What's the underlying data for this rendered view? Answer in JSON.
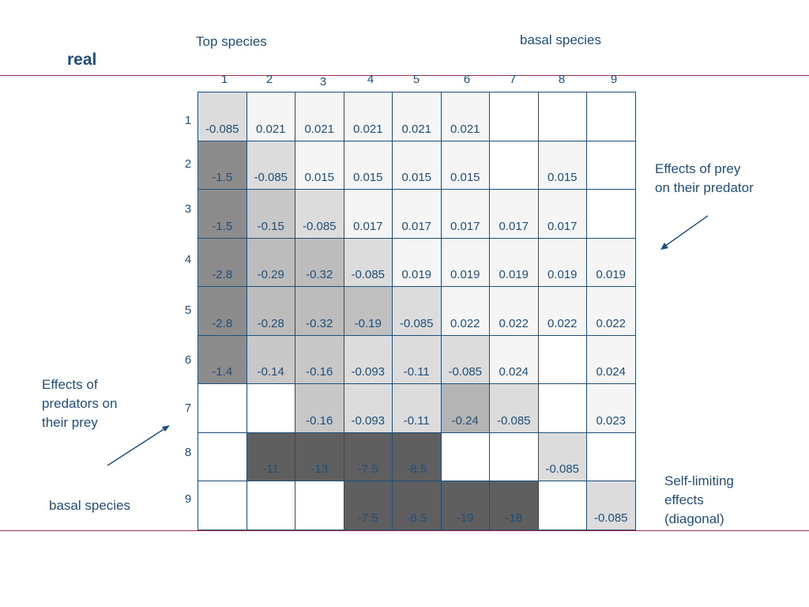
{
  "title": "real",
  "header": {
    "top_species": "Top species",
    "basal_species": "basal species"
  },
  "annotations": {
    "prey_on_predator": [
      "Effects of prey",
      "on their predator"
    ],
    "predators_on_prey": [
      "Effects of",
      "predators on",
      "their prey"
    ],
    "basal_species_left": "basal species",
    "self_limiting": [
      "Self-limiting",
      "effects",
      "(diagonal)"
    ]
  },
  "matrix": {
    "col_labels": [
      "1",
      "2",
      "3",
      "4",
      "5",
      "6",
      "7",
      "8",
      "9"
    ],
    "row_labels": [
      "1",
      "2",
      "3",
      "4",
      "5",
      "6",
      "7",
      "8",
      "9"
    ],
    "values": [
      [
        "-0.085",
        "0.021",
        "0.021",
        "0.021",
        "0.021",
        "0.021",
        "",
        "",
        ""
      ],
      [
        "-1.5",
        "-0.085",
        "0.015",
        "0.015",
        "0.015",
        "0.015",
        "",
        "0.015",
        ""
      ],
      [
        "-1.5",
        "-0.15",
        "-0.085",
        "0.017",
        "0.017",
        "0.017",
        "0.017",
        "0.017",
        ""
      ],
      [
        "-2.8",
        "-0.29",
        "-0.32",
        "-0.085",
        "0.019",
        "0.019",
        "0.019",
        "0.019",
        "0.019"
      ],
      [
        "-2.8",
        "-0.28",
        "-0.32",
        "-0.19",
        "-0.085",
        "0.022",
        "0.022",
        "0.022",
        "0.022"
      ],
      [
        "-1.4",
        "-0.14",
        "-0.16",
        "-0.093",
        "-0.11",
        "-0.085",
        "0.024",
        "",
        "0.024"
      ],
      [
        "",
        "",
        "-0.16",
        "-0.093",
        "-0.11",
        "-0.24",
        "-0.085",
        "",
        "0.023"
      ],
      [
        "",
        "-11",
        "-13",
        "-7.5",
        "-8.5",
        "",
        "",
        "-0.085",
        ""
      ],
      [
        "",
        "",
        "",
        "-7.5",
        "-8.5",
        "-19",
        "-18",
        "",
        "-0.085"
      ]
    ],
    "shades": [
      [
        "#dcdcdc",
        "#f5f5f5",
        "#f5f5f5",
        "#f5f5f5",
        "#f5f5f5",
        "#f5f5f5",
        "#ffffff",
        "#ffffff",
        "#ffffff"
      ],
      [
        "#8c8c8c",
        "#dcdcdc",
        "#f5f5f5",
        "#f5f5f5",
        "#f5f5f5",
        "#f5f5f5",
        "#ffffff",
        "#f5f5f5",
        "#ffffff"
      ],
      [
        "#8c8c8c",
        "#c8c8c8",
        "#dcdcdc",
        "#f5f5f5",
        "#f5f5f5",
        "#f5f5f5",
        "#f5f5f5",
        "#f5f5f5",
        "#ffffff"
      ],
      [
        "#8c8c8c",
        "#bcbcbc",
        "#bcbcbc",
        "#dcdcdc",
        "#f5f5f5",
        "#f5f5f5",
        "#f5f5f5",
        "#f5f5f5",
        "#f5f5f5"
      ],
      [
        "#8c8c8c",
        "#bcbcbc",
        "#bcbcbc",
        "#c0c0c0",
        "#dcdcdc",
        "#f5f5f5",
        "#f5f5f5",
        "#f5f5f5",
        "#f5f5f5"
      ],
      [
        "#8c8c8c",
        "#c8c8c8",
        "#c8c8c8",
        "#dcdcdc",
        "#dcdcdc",
        "#dcdcdc",
        "#f5f5f5",
        "#ffffff",
        "#f5f5f5"
      ],
      [
        "#ffffff",
        "#ffffff",
        "#c8c8c8",
        "#dcdcdc",
        "#dcdcdc",
        "#b4b4b4",
        "#dcdcdc",
        "#ffffff",
        "#f5f5f5"
      ],
      [
        "#ffffff",
        "#5f5f5f",
        "#5f5f5f",
        "#5f5f5f",
        "#5f5f5f",
        "#ffffff",
        "#ffffff",
        "#dcdcdc",
        "#ffffff"
      ],
      [
        "#ffffff",
        "#ffffff",
        "#ffffff",
        "#5f5f5f",
        "#5f5f5f",
        "#5f5f5f",
        "#5f5f5f",
        "#ffffff",
        "#dcdcdc"
      ]
    ]
  },
  "colors": {
    "text": "#1f4e79",
    "rule": "#a0304a"
  }
}
